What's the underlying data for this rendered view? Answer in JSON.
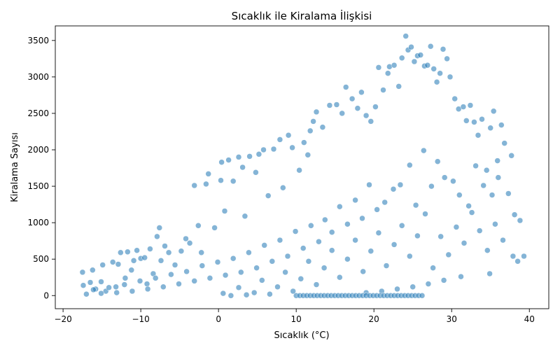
{
  "chart_data": {
    "type": "scatter",
    "title": "Sıcaklık ile Kiralama İlişkisi",
    "xlabel": "Sıcaklık (°C)",
    "ylabel": "Kiralama Sayısı",
    "xlim": [
      -21,
      42.5
    ],
    "ylim": [
      -180,
      3700
    ],
    "xticks": [
      -20,
      -10,
      0,
      10,
      20,
      30,
      40
    ],
    "yticks": [
      0,
      500,
      1000,
      1500,
      2000,
      2500,
      3000,
      3500
    ],
    "grid": false,
    "color": "#1f77b4",
    "point_alpha": 0.55,
    "series": [
      {
        "points": [
          [
            -17.5,
            320
          ],
          [
            -17.4,
            140
          ],
          [
            -16.5,
            180
          ],
          [
            -16.2,
            350
          ],
          [
            -15.8,
            90
          ],
          [
            -15.1,
            190
          ],
          [
            -14.9,
            420
          ],
          [
            -14.5,
            60
          ],
          [
            -13.6,
            460
          ],
          [
            -13.2,
            120
          ],
          [
            -12.9,
            430
          ],
          [
            -12.6,
            590
          ],
          [
            -12.0,
            240
          ],
          [
            -11.7,
            600
          ],
          [
            -11.2,
            350
          ],
          [
            -10.9,
            480
          ],
          [
            -10.5,
            620
          ],
          [
            -10.0,
            510
          ],
          [
            -9.5,
            520
          ],
          [
            -9.2,
            160
          ],
          [
            -8.8,
            640
          ],
          [
            -8.4,
            300
          ],
          [
            -7.9,
            810
          ],
          [
            -7.6,
            930
          ],
          [
            -7.4,
            480
          ],
          [
            -6.9,
            680
          ],
          [
            -6.4,
            590
          ],
          [
            -5.6,
            420
          ],
          [
            -4.8,
            610
          ],
          [
            -4.2,
            780
          ],
          [
            -3.7,
            720
          ],
          [
            -3.1,
            1510
          ],
          [
            -2.6,
            960
          ],
          [
            -2.2,
            590
          ],
          [
            -1.6,
            1530
          ],
          [
            -1.3,
            1670
          ],
          [
            -0.5,
            930
          ],
          [
            0.3,
            1580
          ],
          [
            0.4,
            1830
          ],
          [
            0.8,
            1160
          ],
          [
            1.3,
            1860
          ],
          [
            1.9,
            1570
          ],
          [
            2.6,
            1900
          ],
          [
            3.1,
            1760
          ],
          [
            3.4,
            1090
          ],
          [
            4.0,
            1910
          ],
          [
            4.8,
            1690
          ],
          [
            5.2,
            1940
          ],
          [
            5.8,
            2000
          ],
          [
            6.4,
            1370
          ],
          [
            7.1,
            2010
          ],
          [
            7.9,
            2140
          ],
          [
            8.3,
            1480
          ],
          [
            9.0,
            2200
          ],
          [
            9.5,
            2030
          ],
          [
            10.4,
            1720
          ],
          [
            11.0,
            2100
          ],
          [
            11.5,
            1930
          ],
          [
            11.8,
            2260
          ],
          [
            12.2,
            2390
          ],
          [
            12.6,
            2520
          ],
          [
            13.4,
            2310
          ],
          [
            14.3,
            2610
          ],
          [
            15.2,
            2620
          ],
          [
            15.9,
            2500
          ],
          [
            16.4,
            2860
          ],
          [
            17.2,
            2700
          ],
          [
            17.9,
            2570
          ],
          [
            18.4,
            2790
          ],
          [
            19.0,
            2470
          ],
          [
            19.6,
            2390
          ],
          [
            20.2,
            2590
          ],
          [
            20.6,
            3130
          ],
          [
            21.2,
            2820
          ],
          [
            21.8,
            3050
          ],
          [
            22.0,
            3140
          ],
          [
            22.6,
            3160
          ],
          [
            23.2,
            2870
          ],
          [
            23.6,
            3260
          ],
          [
            24.1,
            3560
          ],
          [
            24.4,
            3370
          ],
          [
            24.8,
            3410
          ],
          [
            25.2,
            3210
          ],
          [
            25.6,
            3290
          ],
          [
            26.0,
            3300
          ],
          [
            26.5,
            3150
          ],
          [
            26.9,
            3160
          ],
          [
            27.3,
            3420
          ],
          [
            27.7,
            3110
          ],
          [
            28.1,
            2930
          ],
          [
            28.5,
            3050
          ],
          [
            28.9,
            3380
          ],
          [
            29.4,
            3250
          ],
          [
            29.8,
            3000
          ],
          [
            30.4,
            2700
          ],
          [
            30.9,
            2560
          ],
          [
            31.5,
            2590
          ],
          [
            31.9,
            2400
          ],
          [
            32.4,
            2610
          ],
          [
            32.9,
            2380
          ],
          [
            33.4,
            2200
          ],
          [
            33.9,
            2420
          ],
          [
            34.5,
            1720
          ],
          [
            35.0,
            2300
          ],
          [
            35.4,
            2530
          ],
          [
            35.9,
            1850
          ],
          [
            36.4,
            2340
          ],
          [
            36.8,
            2090
          ],
          [
            37.3,
            1400
          ],
          [
            37.7,
            1920
          ],
          [
            38.1,
            1110
          ],
          [
            38.5,
            470
          ],
          [
            38.8,
            1030
          ],
          [
            39.3,
            540
          ],
          [
            36.0,
            1620
          ],
          [
            35.2,
            1380
          ],
          [
            34.1,
            1510
          ],
          [
            33.1,
            1780
          ],
          [
            32.2,
            1230
          ],
          [
            31.0,
            1380
          ],
          [
            30.2,
            1570
          ],
          [
            29.1,
            1620
          ],
          [
            28.2,
            1840
          ],
          [
            27.4,
            1500
          ],
          [
            26.4,
            1990
          ],
          [
            25.4,
            1240
          ],
          [
            24.6,
            1790
          ],
          [
            23.4,
            1520
          ],
          [
            22.5,
            1460
          ],
          [
            21.4,
            1280
          ],
          [
            20.4,
            1180
          ],
          [
            19.4,
            1520
          ],
          [
            18.5,
            1060
          ],
          [
            17.6,
            1310
          ],
          [
            16.6,
            980
          ],
          [
            15.6,
            1220
          ],
          [
            14.6,
            870
          ],
          [
            13.7,
            1040
          ],
          [
            12.9,
            740
          ],
          [
            11.9,
            960
          ],
          [
            10.9,
            650
          ],
          [
            9.9,
            880
          ],
          [
            8.9,
            540
          ],
          [
            7.9,
            760
          ],
          [
            6.9,
            470
          ],
          [
            5.9,
            690
          ],
          [
            4.9,
            380
          ],
          [
            3.9,
            590
          ],
          [
            2.9,
            320
          ],
          [
            1.9,
            510
          ],
          [
            0.9,
            280
          ],
          [
            -0.1,
            460
          ],
          [
            -1.1,
            240
          ],
          [
            -2.1,
            410
          ],
          [
            -3.1,
            200
          ],
          [
            -4.1,
            330
          ],
          [
            -5.1,
            160
          ],
          [
            -6.1,
            290
          ],
          [
            -7.1,
            120
          ],
          [
            -8.1,
            240
          ],
          [
            -9.1,
            90
          ],
          [
            -10.1,
            200
          ],
          [
            -11.1,
            60
          ],
          [
            -12.1,
            150
          ],
          [
            -13.1,
            40
          ],
          [
            -14.1,
            110
          ],
          [
            -15.1,
            30
          ],
          [
            -16.1,
            80
          ],
          [
            -17.0,
            20
          ],
          [
            37.9,
            540
          ],
          [
            36.6,
            760
          ],
          [
            35.6,
            980
          ],
          [
            34.6,
            620
          ],
          [
            33.6,
            890
          ],
          [
            32.6,
            1140
          ],
          [
            31.6,
            720
          ],
          [
            30.6,
            940
          ],
          [
            29.6,
            560
          ],
          [
            28.6,
            810
          ],
          [
            27.6,
            380
          ],
          [
            26.6,
            1120
          ],
          [
            25.6,
            820
          ],
          [
            24.6,
            540
          ],
          [
            23.6,
            960
          ],
          [
            22.6,
            700
          ],
          [
            21.6,
            410
          ],
          [
            20.6,
            860
          ],
          [
            19.6,
            610
          ],
          [
            18.6,
            330
          ],
          [
            17.6,
            760
          ],
          [
            16.6,
            500
          ],
          [
            15.6,
            250
          ],
          [
            14.6,
            620
          ],
          [
            13.6,
            380
          ],
          [
            12.6,
            150
          ],
          [
            11.6,
            470
          ],
          [
            10.6,
            230
          ],
          [
            9.6,
            60
          ],
          [
            8.6,
            320
          ],
          [
            7.6,
            120
          ],
          [
            6.6,
            20
          ],
          [
            5.6,
            210
          ],
          [
            4.6,
            40
          ],
          [
            3.6,
            10
          ],
          [
            2.6,
            110
          ],
          [
            1.6,
            0
          ],
          [
            0.6,
            30
          ],
          [
            34.9,
            300
          ],
          [
            31.2,
            260
          ],
          [
            29.0,
            210
          ],
          [
            27.0,
            160
          ],
          [
            25.0,
            120
          ],
          [
            23.0,
            90
          ],
          [
            21.0,
            60
          ],
          [
            19.0,
            40
          ]
        ]
      }
    ],
    "zero_rentals_x_range": [
      10,
      26.5
    ]
  }
}
